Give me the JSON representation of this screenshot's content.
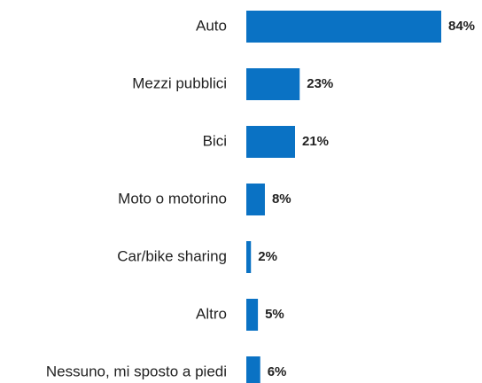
{
  "chart_data": {
    "type": "hbar",
    "categories": [
      "Auto",
      "Mezzi pubblici",
      "Bici",
      "Moto o motorino",
      "Car/bike sharing",
      "Altro",
      "Nessuno, mi sposto a piedi"
    ],
    "values": [
      84,
      23,
      21,
      8,
      2,
      5,
      6
    ],
    "value_labels": [
      "84%",
      "23%",
      "21%",
      "8%",
      "2%",
      "5%",
      "6%"
    ],
    "color": "#0a72c4"
  }
}
